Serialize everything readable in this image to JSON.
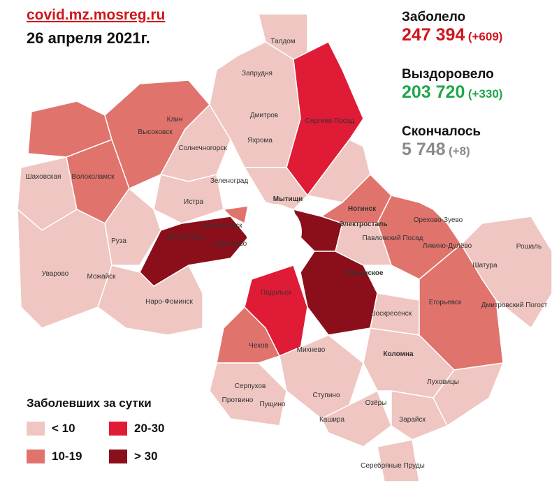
{
  "header": {
    "source": "covid.mz.mosreg.ru",
    "date": "26 апреля 2021г."
  },
  "stats": [
    {
      "label": "Заболело",
      "value": "247 394",
      "delta": "(+609)",
      "color": "#d0151d"
    },
    {
      "label": "Выздоровело",
      "value": "203 720",
      "delta": "(+330)",
      "color": "#1fa64a"
    },
    {
      "label": "Скончалось",
      "value": "5 748",
      "delta": "(+8)",
      "color": "#8a8a8a"
    }
  ],
  "legend": {
    "title": "Заболевших за сутки",
    "items": [
      {
        "label": "< 10",
        "color": "#efc6c1"
      },
      {
        "label": "10-19",
        "color": "#e0736c"
      },
      {
        "label": "20-30",
        "color": "#e01b35"
      },
      {
        "label": "> 30",
        "color": "#8b0f1a"
      }
    ]
  },
  "places": [
    "Талдом",
    "Запрудня",
    "Дмитров",
    "Яхрома",
    "Сергиев Посад",
    "Клин",
    "Высоковск",
    "Солнечногорск",
    "Шаховская",
    "Волоколамск",
    "Зеленоград",
    "Мытищи",
    "Истра",
    "Красногорск",
    "Ногинск",
    "Электросталь",
    "Орехово-Зуево",
    "Павловский Посад",
    "Ликино-Дулёво",
    "Рошаль",
    "Руза",
    "Звенигород",
    "Одинцово",
    "Шатура",
    "Уварово",
    "Можайск",
    "Раменское",
    "Наро-Фоминск",
    "Егорьевск",
    "Дмитровский Погост",
    "Воскресенск",
    "Подольск",
    "Чехов",
    "Михнево",
    "Коломна",
    "Луховицы",
    "Серпухов",
    "Ступино",
    "Озёры",
    "Протвино",
    "Пущино",
    "Кашира",
    "Зарайск",
    "Серебряные Пруды"
  ]
}
